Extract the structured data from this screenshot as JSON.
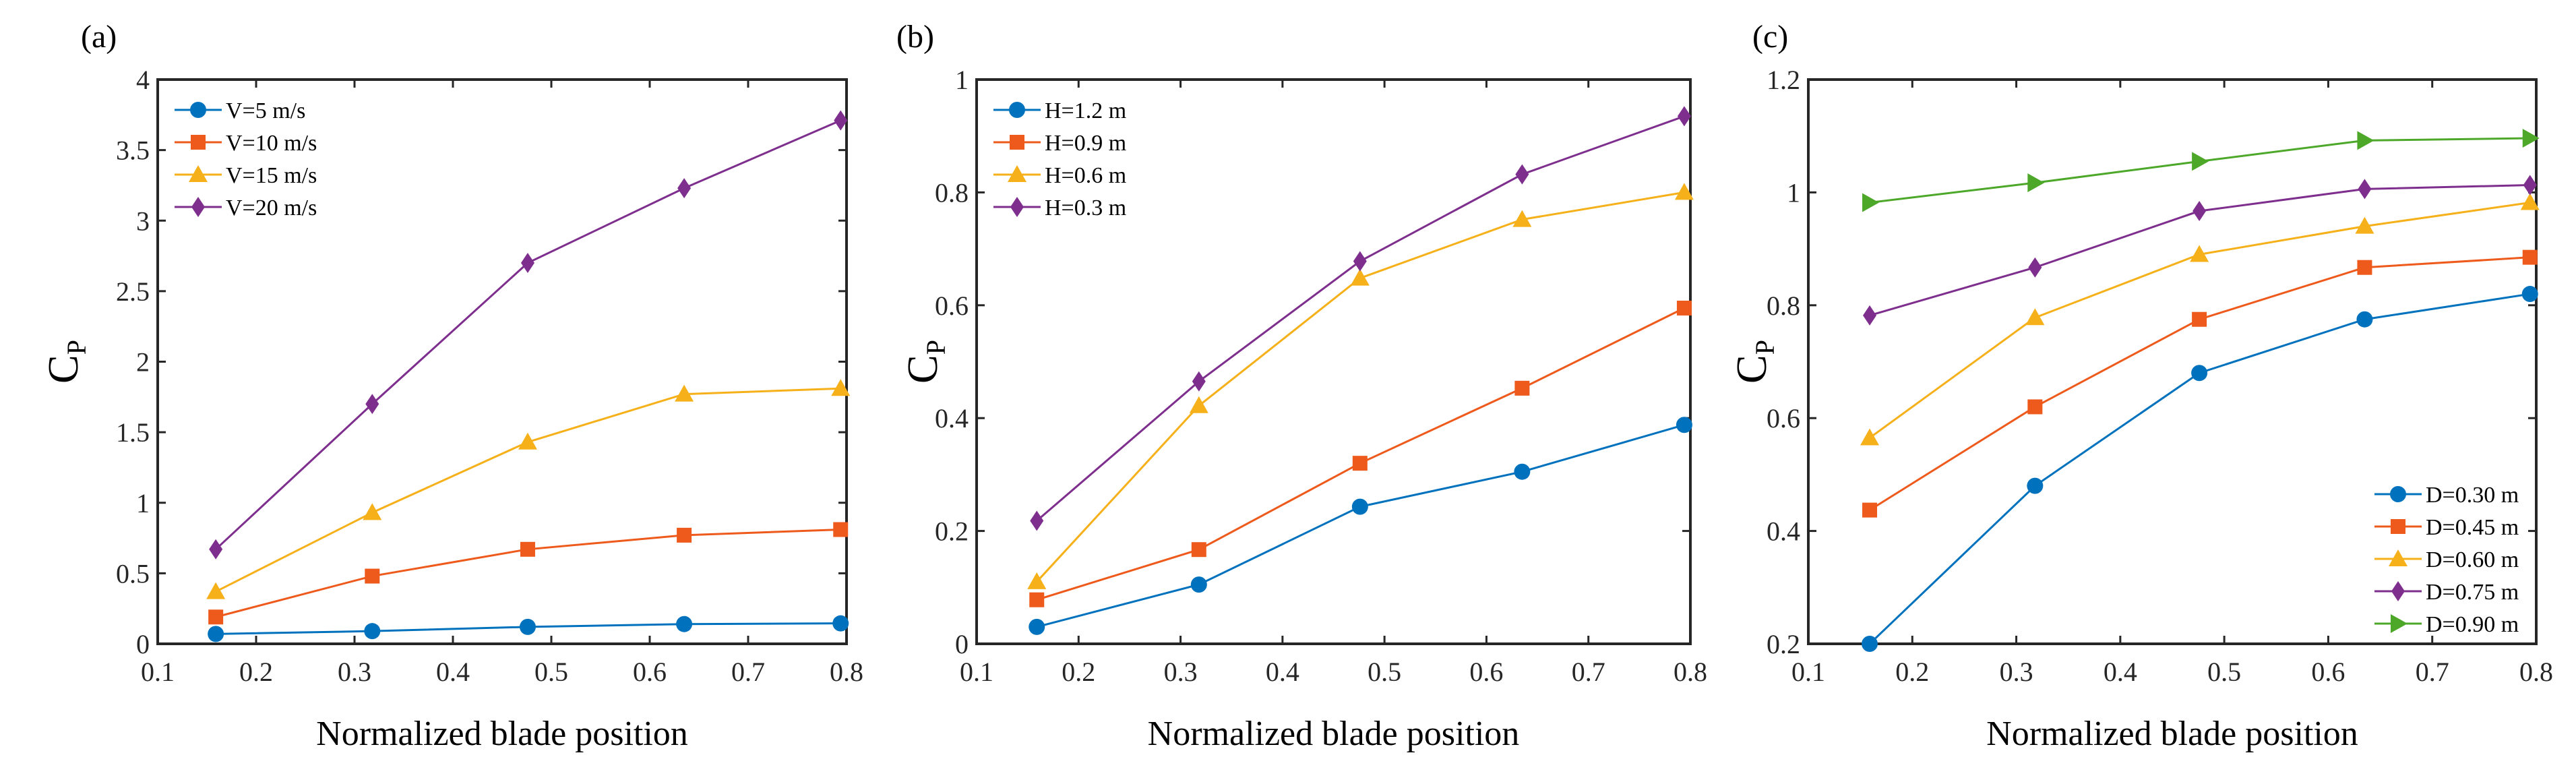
{
  "chart_data": [
    {
      "type": "line",
      "panel_label": "(a)",
      "xlabel": "Normalized  blade position",
      "ylabel": "C",
      "ylabel_sub": "P",
      "xlim": [
        0.1,
        0.8
      ],
      "ylim": [
        0,
        4
      ],
      "xticks": [
        "0.1",
        "0.2",
        "0.3",
        "0.4",
        "0.5",
        "0.6",
        "0.7",
        "0.8"
      ],
      "yticks": [
        "0",
        "0.5",
        "1",
        "1.5",
        "2",
        "2.5",
        "3",
        "3.5",
        "4"
      ],
      "grid": false,
      "legend_position": "top-left",
      "x": [
        0.159,
        0.318,
        0.476,
        0.635,
        0.794
      ],
      "series": [
        {
          "name": "V=5 m/s",
          "marker": "circle",
          "color": "#0072BD",
          "values": [
            0.07,
            0.09,
            0.12,
            0.14,
            0.145
          ]
        },
        {
          "name": "V=10 m/s",
          "marker": "square",
          "color": "#EE5A1C",
          "values": [
            0.19,
            0.48,
            0.67,
            0.77,
            0.81
          ]
        },
        {
          "name": "V=15 m/s",
          "marker": "triangle-up",
          "color": "#F5B01A",
          "values": [
            0.37,
            0.93,
            1.43,
            1.77,
            1.81
          ]
        },
        {
          "name": "V=20 m/s",
          "marker": "diamond",
          "color": "#7E2F8E",
          "values": [
            0.67,
            1.7,
            2.7,
            3.23,
            3.71
          ]
        }
      ]
    },
    {
      "type": "line",
      "panel_label": "(b)",
      "xlabel": "Normalized  blade position",
      "ylabel": "C",
      "ylabel_sub": "P",
      "xlim": [
        0.1,
        0.8
      ],
      "ylim": [
        0,
        1
      ],
      "xticks": [
        "0.1",
        "0.2",
        "0.3",
        "0.4",
        "0.5",
        "0.6",
        "0.7",
        "0.8"
      ],
      "yticks": [
        "0",
        "0.2",
        "0.4",
        "0.6",
        "0.8",
        "1"
      ],
      "grid": false,
      "legend_position": "top-left",
      "x": [
        0.159,
        0.318,
        0.476,
        0.635,
        0.794
      ],
      "series": [
        {
          "name": "H=1.2 m",
          "marker": "circle",
          "color": "#0072BD",
          "values": [
            0.03,
            0.105,
            0.243,
            0.305,
            0.388
          ]
        },
        {
          "name": "H=0.9 m",
          "marker": "square",
          "color": "#EE5A1C",
          "values": [
            0.078,
            0.167,
            0.32,
            0.453,
            0.595
          ]
        },
        {
          "name": "H=0.6 m",
          "marker": "triangle-up",
          "color": "#F5B01A",
          "values": [
            0.11,
            0.422,
            0.648,
            0.752,
            0.8
          ]
        },
        {
          "name": "H=0.3 m",
          "marker": "diamond",
          "color": "#7E2F8E",
          "values": [
            0.218,
            0.465,
            0.678,
            0.832,
            0.935
          ]
        }
      ]
    },
    {
      "type": "line",
      "panel_label": "(c)",
      "xlabel": "Normalized  blade position",
      "ylabel": "C",
      "ylabel_sub": "P",
      "xlim": [
        0.1,
        0.8
      ],
      "ylim": [
        0.2,
        1.2
      ],
      "xticks": [
        "0.1",
        "0.2",
        "0.3",
        "0.4",
        "0.5",
        "0.6",
        "0.7",
        "0.8"
      ],
      "yticks": [
        "0.2",
        "0.4",
        "0.6",
        "0.8",
        "1",
        "1.2"
      ],
      "grid": false,
      "legend_position": "bottom-right",
      "x": [
        0.159,
        0.318,
        0.476,
        0.635,
        0.794
      ],
      "series": [
        {
          "name": "D=0.30 m",
          "marker": "circle",
          "color": "#0072BD",
          "values": [
            0.2,
            0.48,
            0.68,
            0.775,
            0.82
          ]
        },
        {
          "name": "D=0.45 m",
          "marker": "square",
          "color": "#EE5A1C",
          "values": [
            0.437,
            0.62,
            0.775,
            0.867,
            0.885
          ]
        },
        {
          "name": "D=0.60 m",
          "marker": "triangle-up",
          "color": "#F5B01A",
          "values": [
            0.565,
            0.778,
            0.89,
            0.94,
            0.982
          ]
        },
        {
          "name": "D=0.75 m",
          "marker": "diamond",
          "color": "#7E2F8E",
          "values": [
            0.782,
            0.867,
            0.967,
            1.006,
            1.013
          ]
        },
        {
          "name": "D=0.90 m",
          "marker": "triangle-right",
          "color": "#4DA82A",
          "values": [
            0.982,
            1.017,
            1.055,
            1.092,
            1.096
          ]
        }
      ]
    }
  ]
}
